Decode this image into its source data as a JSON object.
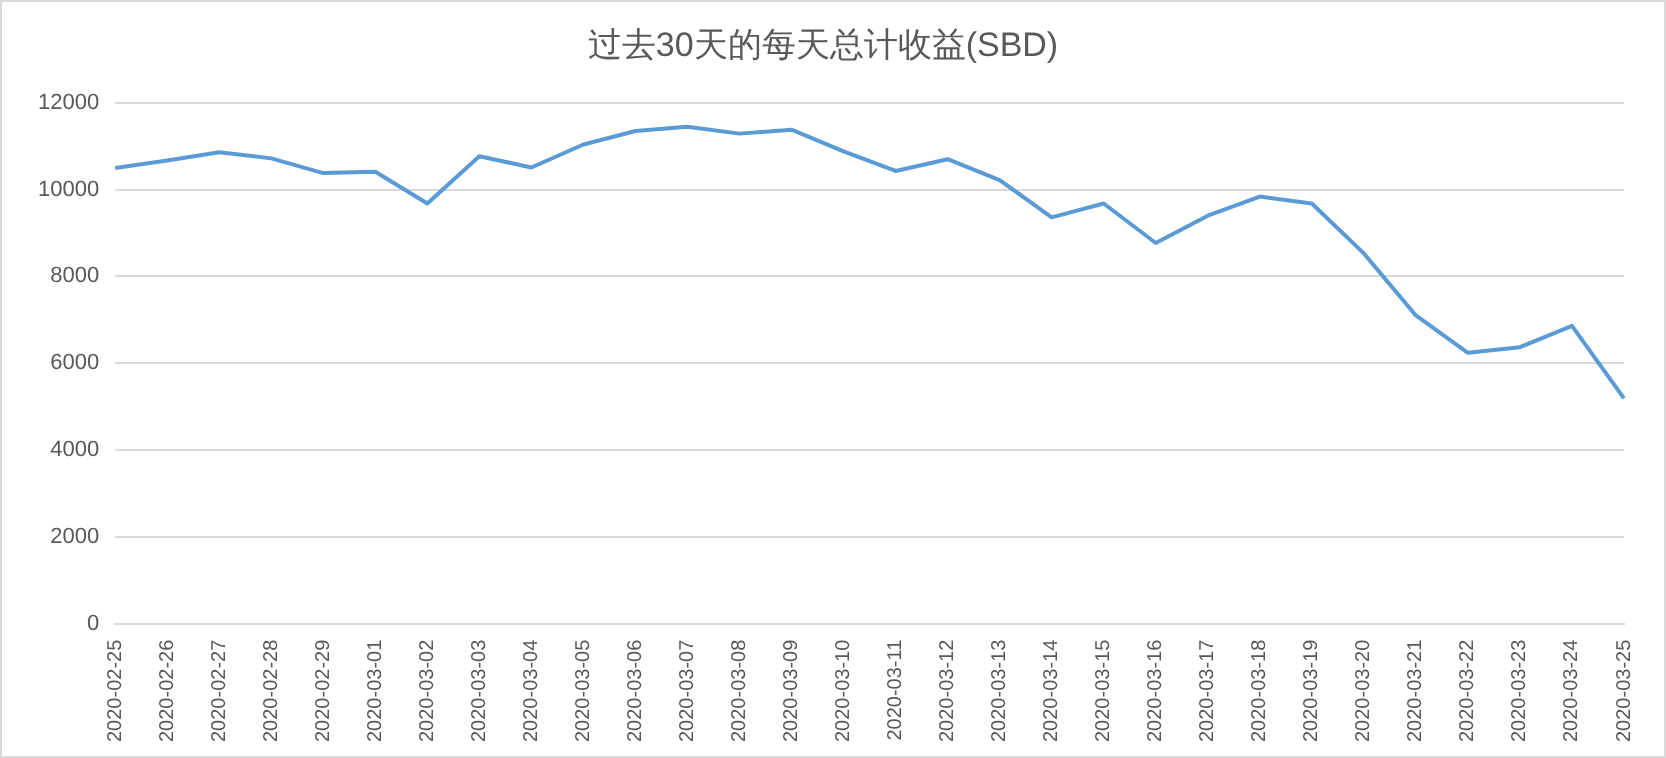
{
  "chart_data": {
    "type": "line",
    "title": "过去30天的每天总计收益(SBD)",
    "categories": [
      "2020-02-25",
      "2020-02-26",
      "2020-02-27",
      "2020-02-28",
      "2020-02-29",
      "2020-03-01",
      "2020-03-02",
      "2020-03-03",
      "2020-03-04",
      "2020-03-05",
      "2020-03-06",
      "2020-03-07",
      "2020-03-08",
      "2020-03-09",
      "2020-03-10",
      "2020-03-11",
      "2020-03-12",
      "2020-03-13",
      "2020-03-14",
      "2020-03-15",
      "2020-03-16",
      "2020-03-17",
      "2020-03-18",
      "2020-03-19",
      "2020-03-20",
      "2020-03-21",
      "2020-03-22",
      "2020-03-23",
      "2020-03-24",
      "2020-03-25"
    ],
    "series": [
      {
        "color": "#5b9bd5",
        "values": [
          10500,
          10670,
          10860,
          10720,
          10380,
          10410,
          9680,
          10770,
          10510,
          11040,
          11350,
          11450,
          11290,
          11380,
          10880,
          10430,
          10700,
          10220,
          9360,
          9680,
          8770,
          9400,
          9840,
          9680,
          8530,
          7100,
          6240,
          6370,
          6860,
          5190
        ]
      }
    ],
    "ylim": [
      0,
      12000
    ],
    "yticks": [
      0,
      2000,
      4000,
      6000,
      8000,
      10000,
      12000
    ],
    "grid": "y",
    "legend": false,
    "marker": "none",
    "line_style": "solid"
  }
}
